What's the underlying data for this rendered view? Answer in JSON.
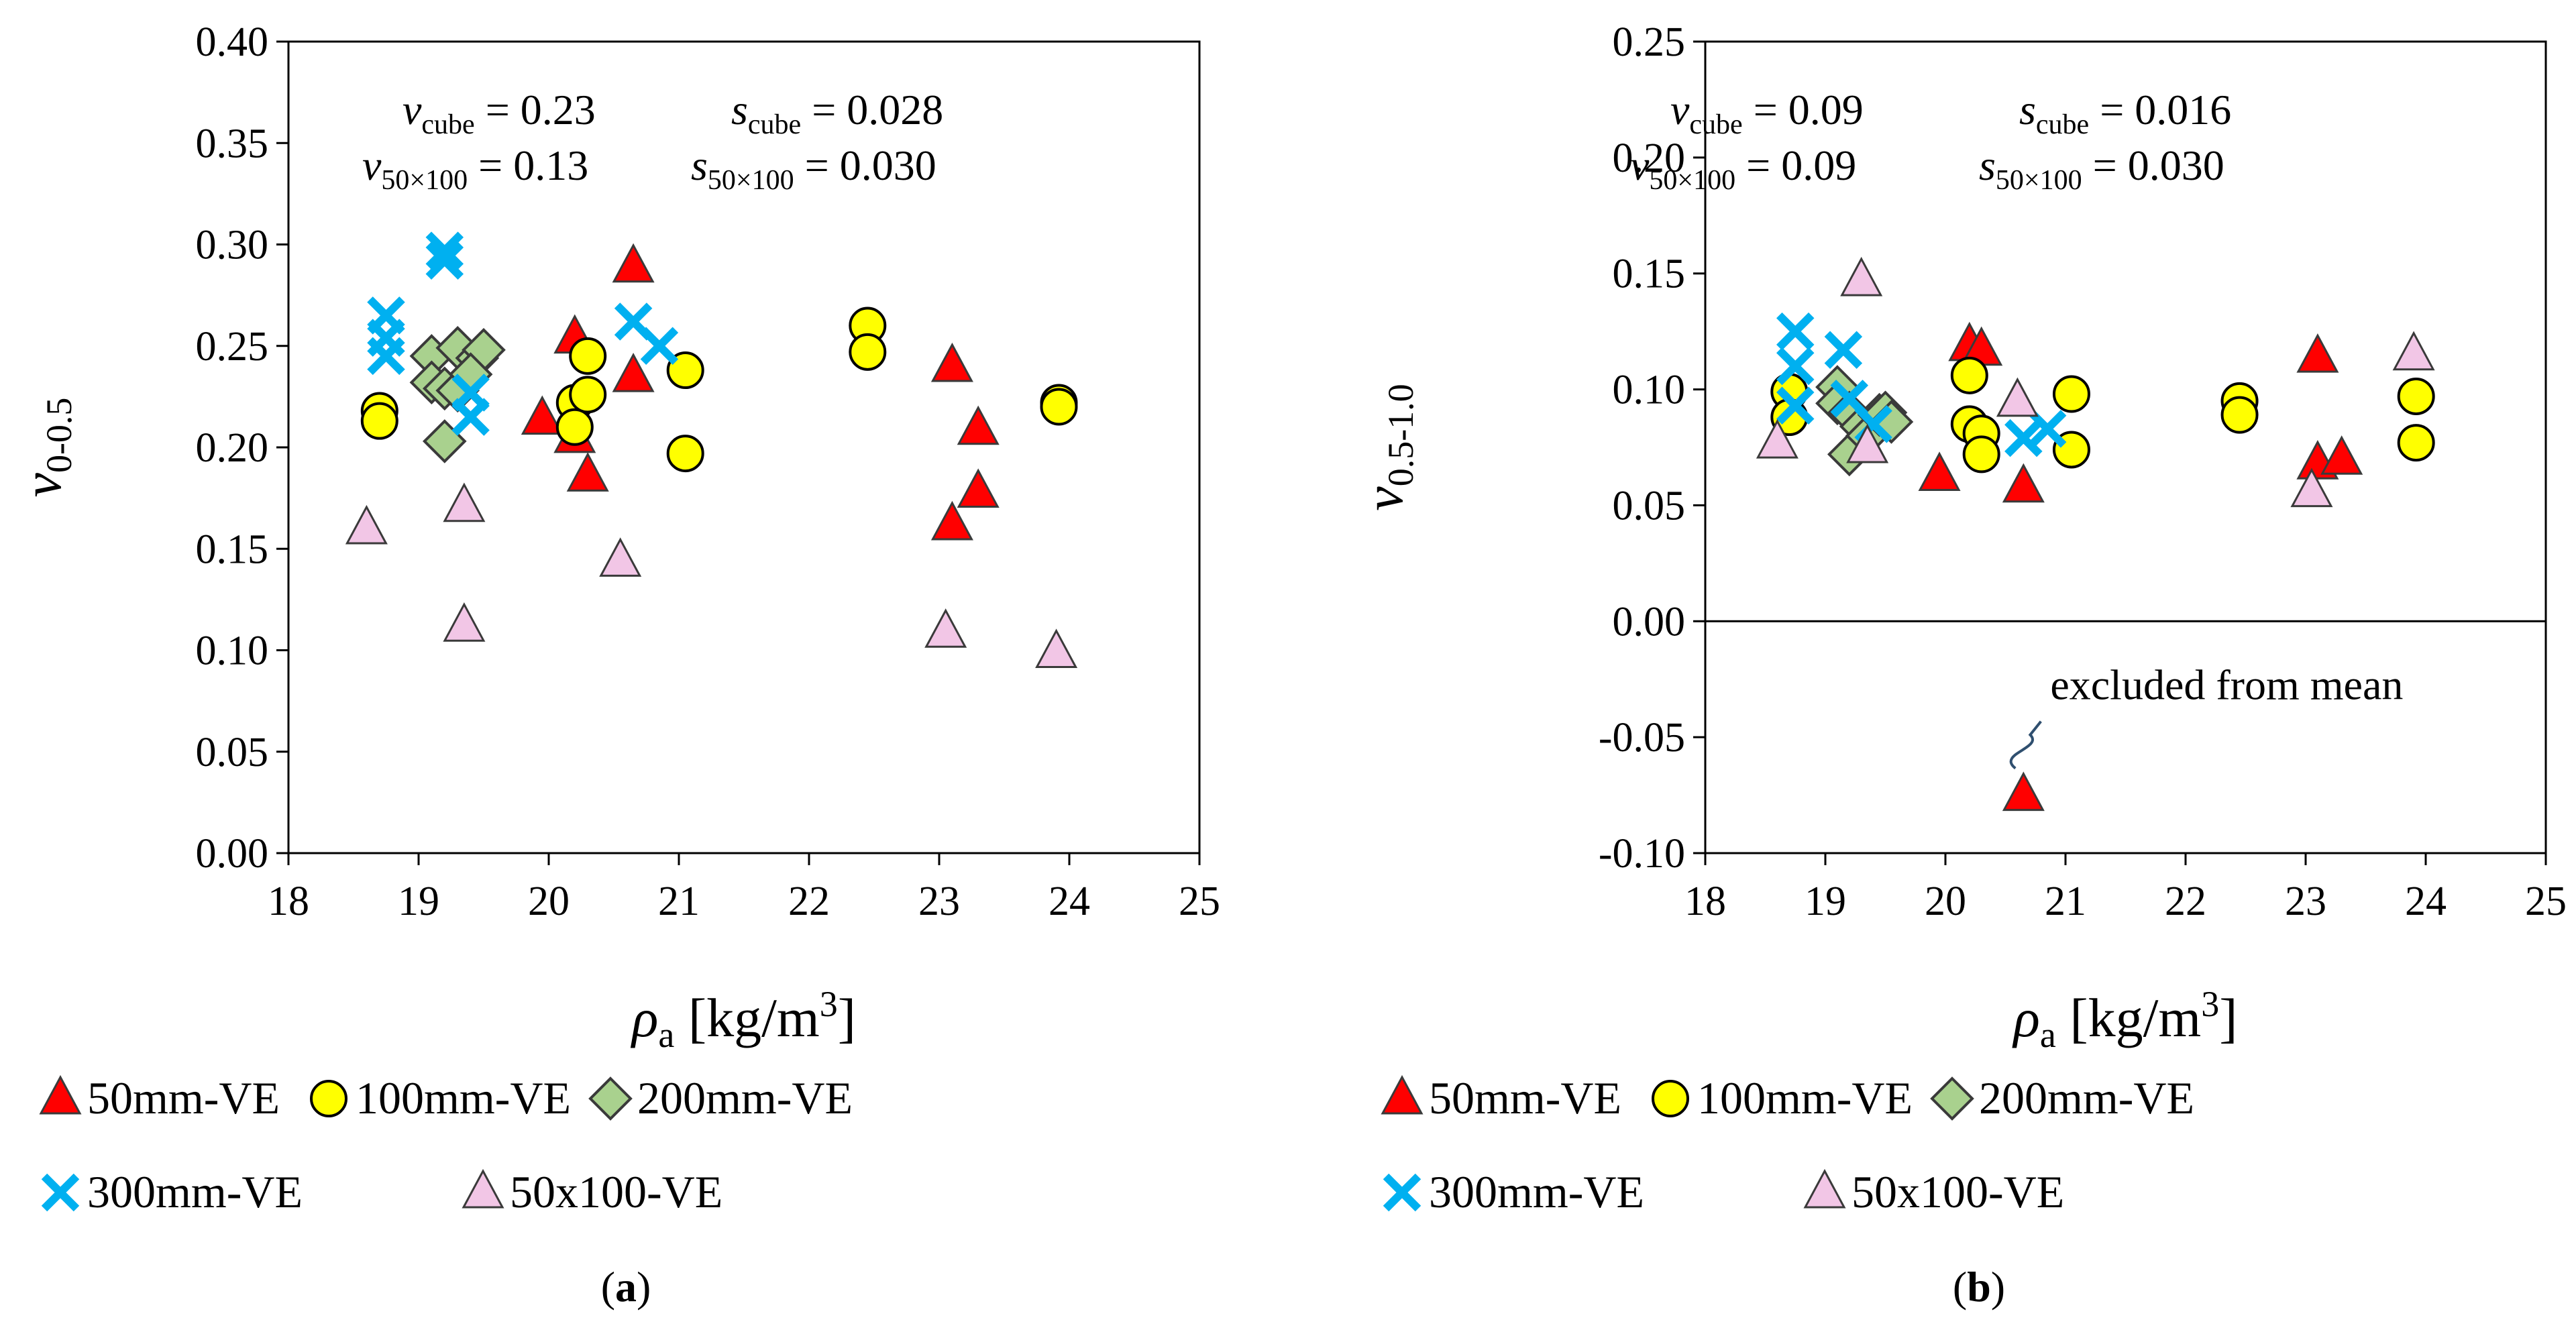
{
  "chart_data": [
    {
      "type": "scatter",
      "panel_label": "(a)",
      "panel_label_parts": [
        "(",
        "a",
        ")"
      ],
      "ylabel_main": "v",
      "ylabel_sub": "0-0.5",
      "xlabel_main": "ρ",
      "xlabel_sub": "a",
      "xlabel_unit": " [kg/m",
      "xlabel_sup": "3",
      "xlabel_close": "]",
      "xlim": [
        18,
        25
      ],
      "ylim": [
        0.0,
        0.4
      ],
      "x_ticks": [
        "18",
        "19",
        "20",
        "21",
        "22",
        "23",
        "24",
        "25"
      ],
      "y_ticks": [
        "0.00",
        "0.05",
        "0.10",
        "0.15",
        "0.20",
        "0.25",
        "0.30",
        "0.35",
        "0.40"
      ],
      "annotations": {
        "v_cube": {
          "sym": "v",
          "sub": "cube",
          "eq": " = 0.23"
        },
        "s_cube": {
          "sym": "s",
          "sub": "cube",
          "eq": " = 0.028"
        },
        "v_50x100": {
          "sym": "v",
          "sub": "50×100",
          "eq": " = 0.13"
        },
        "s_50x100": {
          "sym": "s",
          "sub": "50×100",
          "eq": " = 0.030"
        }
      },
      "series": [
        {
          "name": "50mm-VE",
          "marker": "triangle",
          "color": "#ff0000",
          "points": [
            [
              19.95,
              0.214
            ],
            [
              20.2,
              0.254
            ],
            [
              20.2,
              0.205
            ],
            [
              20.3,
              0.186
            ],
            [
              20.65,
              0.289
            ],
            [
              20.65,
              0.235
            ],
            [
              23.1,
              0.24
            ],
            [
              23.1,
              0.162
            ],
            [
              23.3,
              0.209
            ],
            [
              23.3,
              0.178
            ]
          ]
        },
        {
          "name": "100mm-VE",
          "marker": "circle",
          "color": "#ffff00",
          "points": [
            [
              18.7,
              0.218
            ],
            [
              18.7,
              0.213
            ],
            [
              20.2,
              0.222
            ],
            [
              20.2,
              0.21
            ],
            [
              20.3,
              0.245
            ],
            [
              20.3,
              0.226
            ],
            [
              21.05,
              0.238
            ],
            [
              21.05,
              0.197
            ],
            [
              22.45,
              0.26
            ],
            [
              22.45,
              0.247
            ],
            [
              23.92,
              0.222
            ],
            [
              23.92,
              0.22
            ]
          ]
        },
        {
          "name": "200mm-VE",
          "marker": "diamond",
          "color": "#a9d18e",
          "points": [
            [
              19.1,
              0.245
            ],
            [
              19.1,
              0.232
            ],
            [
              19.2,
              0.203
            ],
            [
              19.2,
              0.229
            ],
            [
              19.3,
              0.249
            ],
            [
              19.3,
              0.228
            ],
            [
              19.45,
              0.244
            ],
            [
              19.5,
              0.248
            ],
            [
              19.4,
              0.236
            ]
          ]
        },
        {
          "name": "300mm-VE",
          "marker": "x",
          "color": "#00b0f0",
          "points": [
            [
              18.75,
              0.265
            ],
            [
              18.75,
              0.254
            ],
            [
              18.75,
              0.245
            ],
            [
              19.2,
              0.297
            ],
            [
              19.2,
              0.292
            ],
            [
              19.4,
              0.227
            ],
            [
              19.4,
              0.215
            ],
            [
              20.65,
              0.262
            ],
            [
              20.85,
              0.25
            ]
          ]
        },
        {
          "name": "50x100-VE",
          "marker": "triangle",
          "color": "#f2c6e6",
          "points": [
            [
              18.6,
              0.16
            ],
            [
              19.35,
              0.171
            ],
            [
              19.35,
              0.112
            ],
            [
              20.55,
              0.144
            ],
            [
              23.05,
              0.109
            ],
            [
              23.9,
              0.099
            ]
          ]
        }
      ]
    },
    {
      "type": "scatter",
      "panel_label": "(b)",
      "panel_label_parts": [
        "(",
        "b",
        ")"
      ],
      "ylabel_main": "v",
      "ylabel_sub": "0.5-1.0",
      "xlabel_main": "ρ",
      "xlabel_sub": "a",
      "xlabel_unit": " [kg/m",
      "xlabel_sup": "3",
      "xlabel_close": "]",
      "xlim": [
        18,
        25
      ],
      "ylim": [
        -0.1,
        0.25
      ],
      "x_ticks": [
        "18",
        "19",
        "20",
        "21",
        "22",
        "23",
        "24",
        "25"
      ],
      "y_ticks": [
        "-0.10",
        "-0.05",
        "0.00",
        "0.05",
        "0.10",
        "0.15",
        "0.20",
        "0.25"
      ],
      "annotations": {
        "v_cube": {
          "sym": "v",
          "sub": "cube",
          "eq": " = 0.09"
        },
        "s_cube": {
          "sym": "s",
          "sub": "cube",
          "eq": " = 0.016"
        },
        "v_50x100": {
          "sym": "v",
          "sub": "50×100",
          "eq": " = 0.09"
        },
        "s_50x100": {
          "sym": "s",
          "sub": "50×100",
          "eq": " = 0.030"
        },
        "excluded": "excluded from mean"
      },
      "series": [
        {
          "name": "50mm-VE",
          "marker": "triangle",
          "color": "#ff0000",
          "points": [
            [
              19.95,
              0.063
            ],
            [
              20.2,
              0.119
            ],
            [
              20.3,
              0.117
            ],
            [
              20.65,
              0.058
            ],
            [
              20.65,
              -0.075
            ],
            [
              23.1,
              0.114
            ],
            [
              23.1,
              0.068
            ],
            [
              23.3,
              0.07
            ]
          ]
        },
        {
          "name": "100mm-VE",
          "marker": "circle",
          "color": "#ffff00",
          "points": [
            [
              18.7,
              0.099
            ],
            [
              18.7,
              0.088
            ],
            [
              20.2,
              0.106
            ],
            [
              20.2,
              0.085
            ],
            [
              20.3,
              0.081
            ],
            [
              20.3,
              0.072
            ],
            [
              21.05,
              0.098
            ],
            [
              21.05,
              0.074
            ],
            [
              22.45,
              0.095
            ],
            [
              22.45,
              0.089
            ],
            [
              23.92,
              0.097
            ],
            [
              23.92,
              0.077
            ]
          ]
        },
        {
          "name": "200mm-VE",
          "marker": "diamond",
          "color": "#a9d18e",
          "points": [
            [
              19.1,
              0.101
            ],
            [
              19.1,
              0.094
            ],
            [
              19.2,
              0.09
            ],
            [
              19.2,
              0.072
            ],
            [
              19.3,
              0.084
            ],
            [
              19.35,
              0.08
            ],
            [
              19.45,
              0.089
            ],
            [
              19.5,
              0.09
            ],
            [
              19.55,
              0.086
            ]
          ]
        },
        {
          "name": "300mm-VE",
          "marker": "x",
          "color": "#00b0f0",
          "points": [
            [
              18.75,
              0.125
            ],
            [
              18.75,
              0.11
            ],
            [
              18.75,
              0.093
            ],
            [
              19.15,
              0.117
            ],
            [
              19.2,
              0.096
            ],
            [
              19.4,
              0.085
            ],
            [
              20.65,
              0.079
            ],
            [
              20.85,
              0.083
            ]
          ]
        },
        {
          "name": "50x100-VE",
          "marker": "triangle",
          "color": "#f2c6e6",
          "points": [
            [
              18.6,
              0.077
            ],
            [
              19.3,
              0.147
            ],
            [
              19.35,
              0.075
            ],
            [
              20.6,
              0.095
            ],
            [
              23.05,
              0.056
            ],
            [
              23.9,
              0.115
            ]
          ]
        }
      ]
    }
  ]
}
